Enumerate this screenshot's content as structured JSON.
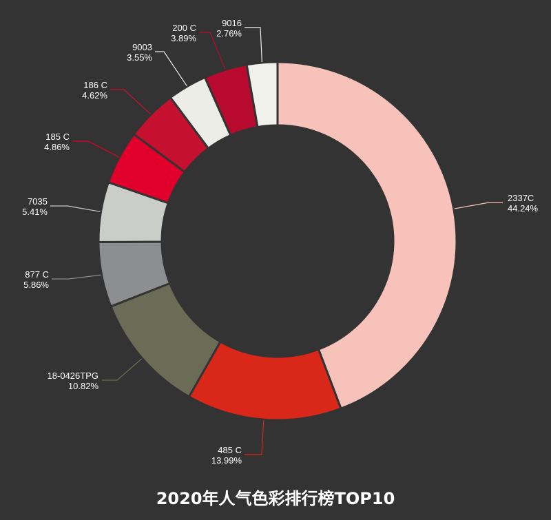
{
  "chart_data": {
    "type": "pie",
    "style": "donut",
    "title": "2020年人气色彩排行榜TOP10",
    "slices": [
      {
        "name": "2337C",
        "value": 44.24,
        "percent_label": "44.24%",
        "color": "#f7c2ba"
      },
      {
        "name": "485 C",
        "value": 13.99,
        "percent_label": "13.99%",
        "color": "#d9271a"
      },
      {
        "name": "18-0426TPG",
        "value": 10.82,
        "percent_label": "10.82%",
        "color": "#6a6c55"
      },
      {
        "name": "877 C",
        "value": 5.86,
        "percent_label": "5.86%",
        "color": "#8c8e90"
      },
      {
        "name": "7035",
        "value": 5.41,
        "percent_label": "5.41%",
        "color": "#cbcdc8"
      },
      {
        "name": "185 C",
        "value": 4.86,
        "percent_label": "4.86%",
        "color": "#e1002b"
      },
      {
        "name": "186 C",
        "value": 4.62,
        "percent_label": "4.62%",
        "color": "#c5102f"
      },
      {
        "name": "9003",
        "value": 3.55,
        "percent_label": "3.55%",
        "color": "#ecede7"
      },
      {
        "name": "200 C",
        "value": 3.89,
        "percent_label": "3.89%",
        "color": "#b80a2e"
      },
      {
        "name": "9016",
        "value": 2.76,
        "percent_label": "2.76%",
        "color": "#f1f1ec"
      }
    ]
  }
}
